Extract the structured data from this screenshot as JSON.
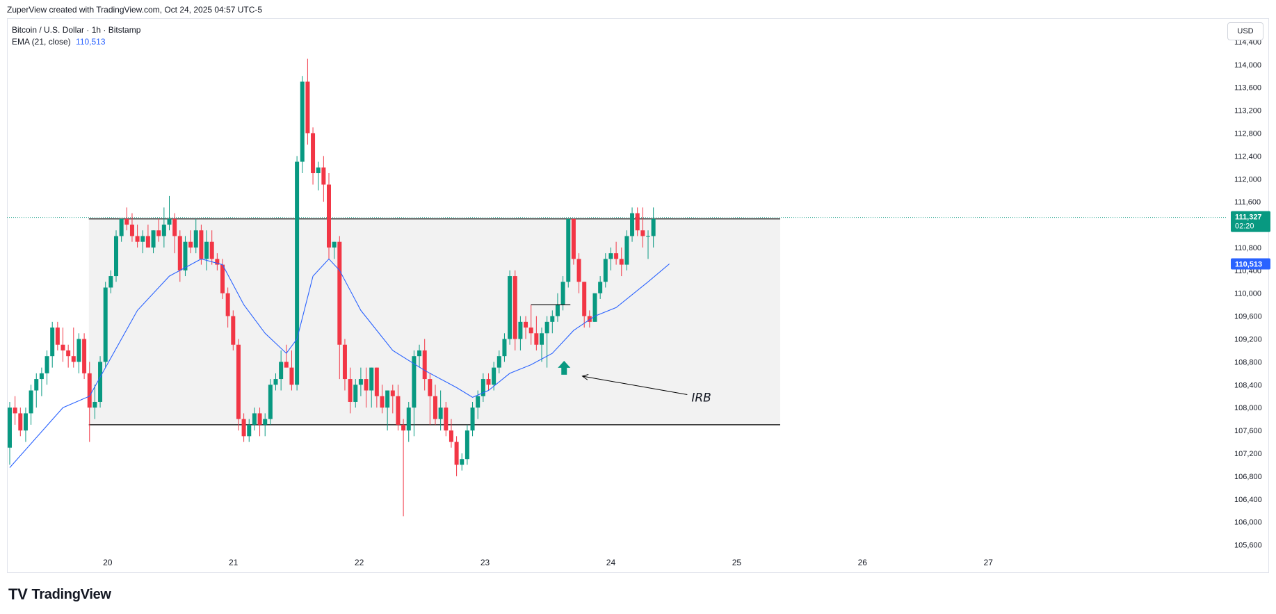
{
  "header": {
    "caption": "ZuperView created with TradingView.com, Oct 24, 2025 04:57 UTC-5"
  },
  "legend": {
    "symbol": "Bitcoin / U.S. Dollar · 1h · Bitstamp",
    "ema_label": "EMA (21, close)",
    "ema_value": "110,513"
  },
  "currency_button": "USD",
  "branding": {
    "logo": "TV",
    "name": "TradingView"
  },
  "chart_data": {
    "type": "candlestick",
    "symbol": "BTC/USD",
    "timeframe": "1h",
    "ylim": [
      105400,
      114800
    ],
    "y_ticks": [
      "105,600",
      "106,000",
      "106,400",
      "106,800",
      "107,200",
      "107,600",
      "108,000",
      "108,400",
      "108,800",
      "109,200",
      "109,600",
      "110,000",
      "110,400",
      "110,800",
      "111,200",
      "111,600",
      "112,000",
      "112,400",
      "112,800",
      "113,200",
      "113,600",
      "114,000",
      "114,400"
    ],
    "x_ticks": [
      {
        "label": "20",
        "pos": 20.0
      },
      {
        "label": "21",
        "pos": 21.0
      },
      {
        "label": "22",
        "pos": 22.0
      },
      {
        "label": "23",
        "pos": 23.0
      },
      {
        "label": "24",
        "pos": 24.0
      },
      {
        "label": "25",
        "pos": 25.0
      },
      {
        "label": "26",
        "pos": 26.0
      },
      {
        "label": "27",
        "pos": 27.0
      }
    ],
    "x_range": [
      19.2,
      28.9
    ],
    "candles": [
      {
        "o": 107300,
        "h": 108100,
        "l": 107000,
        "c": 108000
      },
      {
        "o": 108000,
        "h": 108200,
        "l": 107700,
        "c": 107900
      },
      {
        "o": 107900,
        "h": 108000,
        "l": 107500,
        "c": 107600
      },
      {
        "o": 107600,
        "h": 108000,
        "l": 107400,
        "c": 107900
      },
      {
        "o": 107900,
        "h": 108400,
        "l": 107700,
        "c": 108300
      },
      {
        "o": 108300,
        "h": 108600,
        "l": 108000,
        "c": 108500
      },
      {
        "o": 108500,
        "h": 108700,
        "l": 108200,
        "c": 108600
      },
      {
        "o": 108600,
        "h": 109000,
        "l": 108400,
        "c": 108900
      },
      {
        "o": 108900,
        "h": 109500,
        "l": 108700,
        "c": 109400
      },
      {
        "o": 109400,
        "h": 109500,
        "l": 109000,
        "c": 109100
      },
      {
        "o": 109100,
        "h": 109400,
        "l": 108800,
        "c": 109000
      },
      {
        "o": 109000,
        "h": 109100,
        "l": 108700,
        "c": 108900
      },
      {
        "o": 108900,
        "h": 109400,
        "l": 108700,
        "c": 108800
      },
      {
        "o": 108800,
        "h": 109300,
        "l": 108600,
        "c": 109200
      },
      {
        "o": 109200,
        "h": 109300,
        "l": 108500,
        "c": 108600
      },
      {
        "o": 108600,
        "h": 108800,
        "l": 107400,
        "c": 108000
      },
      {
        "o": 108000,
        "h": 108400,
        "l": 107800,
        "c": 108100
      },
      {
        "o": 108100,
        "h": 108900,
        "l": 108000,
        "c": 108800
      },
      {
        "o": 108800,
        "h": 110200,
        "l": 108700,
        "c": 110100
      },
      {
        "o": 110100,
        "h": 110400,
        "l": 110000,
        "c": 110300
      },
      {
        "o": 110300,
        "h": 111100,
        "l": 110200,
        "c": 111000
      },
      {
        "o": 111000,
        "h": 111300,
        "l": 110900,
        "c": 111300
      },
      {
        "o": 111300,
        "h": 111500,
        "l": 111100,
        "c": 111200
      },
      {
        "o": 111200,
        "h": 111400,
        "l": 110900,
        "c": 111000
      },
      {
        "o": 111000,
        "h": 111200,
        "l": 110800,
        "c": 110900
      },
      {
        "o": 110900,
        "h": 111100,
        "l": 110700,
        "c": 111000
      },
      {
        "o": 111000,
        "h": 111200,
        "l": 110800,
        "c": 110800
      },
      {
        "o": 110800,
        "h": 111100,
        "l": 110700,
        "c": 111100
      },
      {
        "o": 111100,
        "h": 111300,
        "l": 110900,
        "c": 111000
      },
      {
        "o": 111000,
        "h": 111500,
        "l": 110800,
        "c": 111200
      },
      {
        "o": 111200,
        "h": 111700,
        "l": 111100,
        "c": 111300
      },
      {
        "o": 111300,
        "h": 111400,
        "l": 110700,
        "c": 111000
      },
      {
        "o": 111000,
        "h": 111100,
        "l": 110200,
        "c": 110400
      },
      {
        "o": 110400,
        "h": 111000,
        "l": 110300,
        "c": 110900
      },
      {
        "o": 110900,
        "h": 111100,
        "l": 110700,
        "c": 110800
      },
      {
        "o": 110800,
        "h": 111300,
        "l": 110700,
        "c": 111100
      },
      {
        "o": 111100,
        "h": 111200,
        "l": 110500,
        "c": 110600
      },
      {
        "o": 110600,
        "h": 111100,
        "l": 110400,
        "c": 110900
      },
      {
        "o": 110900,
        "h": 111100,
        "l": 110500,
        "c": 110600
      },
      {
        "o": 110600,
        "h": 110700,
        "l": 110400,
        "c": 110500
      },
      {
        "o": 110500,
        "h": 110600,
        "l": 109900,
        "c": 110000
      },
      {
        "o": 110000,
        "h": 110100,
        "l": 109400,
        "c": 109600
      },
      {
        "o": 109600,
        "h": 109700,
        "l": 109000,
        "c": 109100
      },
      {
        "o": 109100,
        "h": 109200,
        "l": 107600,
        "c": 107800
      },
      {
        "o": 107800,
        "h": 107900,
        "l": 107400,
        "c": 107500
      },
      {
        "o": 107500,
        "h": 107800,
        "l": 107400,
        "c": 107700
      },
      {
        "o": 107700,
        "h": 108000,
        "l": 107600,
        "c": 107900
      },
      {
        "o": 107900,
        "h": 108000,
        "l": 107500,
        "c": 107700
      },
      {
        "o": 107700,
        "h": 107900,
        "l": 107500,
        "c": 107800
      },
      {
        "o": 107800,
        "h": 108500,
        "l": 107700,
        "c": 108400
      },
      {
        "o": 108400,
        "h": 108600,
        "l": 108300,
        "c": 108500
      },
      {
        "o": 108500,
        "h": 109000,
        "l": 108300,
        "c": 108800
      },
      {
        "o": 108800,
        "h": 109100,
        "l": 108700,
        "c": 108700
      },
      {
        "o": 108700,
        "h": 109000,
        "l": 108300,
        "c": 108400
      },
      {
        "o": 108400,
        "h": 112400,
        "l": 108300,
        "c": 112300
      },
      {
        "o": 112300,
        "h": 113800,
        "l": 112100,
        "c": 113700
      },
      {
        "o": 113700,
        "h": 114100,
        "l": 112600,
        "c": 112800
      },
      {
        "o": 112800,
        "h": 112900,
        "l": 111900,
        "c": 112100
      },
      {
        "o": 112100,
        "h": 112300,
        "l": 111800,
        "c": 112200
      },
      {
        "o": 112200,
        "h": 112400,
        "l": 111600,
        "c": 111900
      },
      {
        "o": 111900,
        "h": 112100,
        "l": 110600,
        "c": 110800
      },
      {
        "o": 110800,
        "h": 110900,
        "l": 110600,
        "c": 110900
      },
      {
        "o": 110900,
        "h": 111000,
        "l": 108500,
        "c": 109100
      },
      {
        "o": 109100,
        "h": 109200,
        "l": 108300,
        "c": 108500
      },
      {
        "o": 108500,
        "h": 108700,
        "l": 107900,
        "c": 108100
      },
      {
        "o": 108100,
        "h": 108500,
        "l": 108000,
        "c": 108400
      },
      {
        "o": 108400,
        "h": 108700,
        "l": 108200,
        "c": 108500
      },
      {
        "o": 108500,
        "h": 108700,
        "l": 108000,
        "c": 108300
      },
      {
        "o": 108300,
        "h": 108700,
        "l": 108000,
        "c": 108700
      },
      {
        "o": 108700,
        "h": 108700,
        "l": 108000,
        "c": 108200
      },
      {
        "o": 108200,
        "h": 108400,
        "l": 107900,
        "c": 108000
      },
      {
        "o": 108000,
        "h": 108300,
        "l": 107600,
        "c": 108300
      },
      {
        "o": 108300,
        "h": 108400,
        "l": 107900,
        "c": 108200
      },
      {
        "o": 108200,
        "h": 108400,
        "l": 107600,
        "c": 107700
      },
      {
        "o": 107700,
        "h": 107800,
        "l": 106100,
        "c": 107600
      },
      {
        "o": 107600,
        "h": 108100,
        "l": 107400,
        "c": 108000
      },
      {
        "o": 108000,
        "h": 109000,
        "l": 107500,
        "c": 108900
      },
      {
        "o": 108900,
        "h": 109100,
        "l": 108700,
        "c": 109000
      },
      {
        "o": 109000,
        "h": 109200,
        "l": 108300,
        "c": 108500
      },
      {
        "o": 108500,
        "h": 108600,
        "l": 107700,
        "c": 108200
      },
      {
        "o": 108200,
        "h": 108400,
        "l": 107700,
        "c": 107800
      },
      {
        "o": 107800,
        "h": 108300,
        "l": 107600,
        "c": 108000
      },
      {
        "o": 108000,
        "h": 108100,
        "l": 107500,
        "c": 107600
      },
      {
        "o": 107600,
        "h": 107800,
        "l": 107300,
        "c": 107400
      },
      {
        "o": 107400,
        "h": 107500,
        "l": 106800,
        "c": 107000
      },
      {
        "o": 107000,
        "h": 107200,
        "l": 106900,
        "c": 107100
      },
      {
        "o": 107100,
        "h": 107700,
        "l": 107000,
        "c": 107600
      },
      {
        "o": 107600,
        "h": 108100,
        "l": 107500,
        "c": 108000
      },
      {
        "o": 108000,
        "h": 108300,
        "l": 107800,
        "c": 108200
      },
      {
        "o": 108200,
        "h": 108600,
        "l": 108100,
        "c": 108500
      },
      {
        "o": 108500,
        "h": 108600,
        "l": 108300,
        "c": 108400
      },
      {
        "o": 108400,
        "h": 108800,
        "l": 108300,
        "c": 108700
      },
      {
        "o": 108700,
        "h": 109000,
        "l": 108600,
        "c": 108900
      },
      {
        "o": 108900,
        "h": 109300,
        "l": 108800,
        "c": 109200
      },
      {
        "o": 109200,
        "h": 110400,
        "l": 109100,
        "c": 110300
      },
      {
        "o": 110300,
        "h": 110400,
        "l": 109000,
        "c": 109200
      },
      {
        "o": 109200,
        "h": 109600,
        "l": 109000,
        "c": 109500
      },
      {
        "o": 109500,
        "h": 109600,
        "l": 109200,
        "c": 109400
      },
      {
        "o": 109400,
        "h": 109800,
        "l": 109100,
        "c": 109300
      },
      {
        "o": 109300,
        "h": 109600,
        "l": 109000,
        "c": 109100
      },
      {
        "o": 109100,
        "h": 109400,
        "l": 108800,
        "c": 109300
      },
      {
        "o": 109300,
        "h": 109600,
        "l": 108700,
        "c": 109500
      },
      {
        "o": 109500,
        "h": 109700,
        "l": 109300,
        "c": 109600
      },
      {
        "o": 109600,
        "h": 110000,
        "l": 109500,
        "c": 109800
      },
      {
        "o": 109800,
        "h": 110300,
        "l": 109700,
        "c": 110200
      },
      {
        "o": 110200,
        "h": 111300,
        "l": 110100,
        "c": 111300
      },
      {
        "o": 111300,
        "h": 111300,
        "l": 110500,
        "c": 110600
      },
      {
        "o": 110600,
        "h": 110700,
        "l": 110000,
        "c": 110200
      },
      {
        "o": 110200,
        "h": 110200,
        "l": 109400,
        "c": 109600
      },
      {
        "o": 109600,
        "h": 109700,
        "l": 109400,
        "c": 109500
      },
      {
        "o": 109500,
        "h": 110000,
        "l": 109500,
        "c": 110000
      },
      {
        "o": 110000,
        "h": 110300,
        "l": 109900,
        "c": 110200
      },
      {
        "o": 110200,
        "h": 110700,
        "l": 110100,
        "c": 110600
      },
      {
        "o": 110600,
        "h": 110800,
        "l": 110400,
        "c": 110700
      },
      {
        "o": 110700,
        "h": 110900,
        "l": 110500,
        "c": 110600
      },
      {
        "o": 110600,
        "h": 110800,
        "l": 110300,
        "c": 110500
      },
      {
        "o": 110500,
        "h": 111100,
        "l": 110400,
        "c": 111000
      },
      {
        "o": 111000,
        "h": 111500,
        "l": 110900,
        "c": 111400
      },
      {
        "o": 111400,
        "h": 111500,
        "l": 111000,
        "c": 111100
      },
      {
        "o": 111100,
        "h": 111500,
        "l": 110800,
        "c": 111000
      },
      {
        "o": 111000,
        "h": 111100,
        "l": 110600,
        "c": 111000
      },
      {
        "o": 111000,
        "h": 111500,
        "l": 110800,
        "c": 111300
      }
    ],
    "ema": {
      "name": "EMA (21, close)",
      "color": "#2962ff",
      "points": [
        [
          0,
          106950
        ],
        [
          10,
          108000
        ],
        [
          15,
          108200
        ],
        [
          18,
          108700
        ],
        [
          24,
          109700
        ],
        [
          30,
          110300
        ],
        [
          36,
          110600
        ],
        [
          40,
          110500
        ],
        [
          44,
          109800
        ],
        [
          48,
          109300
        ],
        [
          52,
          108950
        ],
        [
          54,
          109200
        ],
        [
          57,
          110300
        ],
        [
          60,
          110600
        ],
        [
          62,
          110400
        ],
        [
          66,
          109700
        ],
        [
          72,
          109000
        ],
        [
          78,
          108650
        ],
        [
          84,
          108350
        ],
        [
          87,
          108180
        ],
        [
          90,
          108300
        ],
        [
          94,
          108600
        ],
        [
          98,
          108750
        ],
        [
          102,
          108950
        ],
        [
          106,
          109350
        ],
        [
          110,
          109600
        ],
        [
          114,
          109750
        ],
        [
          120,
          110200
        ],
        [
          124,
          110513
        ]
      ]
    },
    "range_box": {
      "top": 111300,
      "bottom": 107700,
      "start_candle": 15,
      "end_candle": 127,
      "fill": "#f2f2f2",
      "border": "#000000"
    },
    "signal_line": {
      "y": 109800,
      "start_candle": 98,
      "end_candle": 105
    },
    "signal_arrow": {
      "candle": 105,
      "y": 108600,
      "color": "#089981"
    },
    "annotation": {
      "text": "IRB",
      "x_candle": 119,
      "y": 108300,
      "arrow_to_candle": 107,
      "arrow_to_y": 108550
    },
    "last_price": {
      "value": "111,327",
      "countdown": "02:20",
      "price": 111327,
      "color": "#089981"
    },
    "ema_tag": {
      "value": "110,513",
      "price": 110513,
      "color": "#2962ff"
    },
    "colors": {
      "up": "#089981",
      "down": "#f23645",
      "grid": "#e0e3eb"
    }
  }
}
